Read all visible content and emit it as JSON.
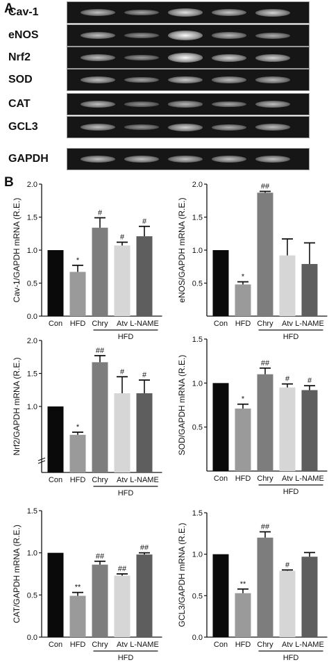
{
  "panels": {
    "a": "A",
    "b": "B"
  },
  "gel": {
    "rows": [
      {
        "label": "Cav-1",
        "intensity": [
          1.0,
          0.7,
          1.35,
          1.05,
          1.2
        ]
      },
      {
        "label": "eNOS",
        "intensity": [
          1.0,
          0.55,
          1.85,
          0.9,
          0.8
        ]
      },
      {
        "label": "Nrf2",
        "intensity": [
          1.0,
          0.6,
          1.65,
          1.2,
          1.2
        ]
      },
      {
        "label": "SOD",
        "intensity": [
          1.0,
          0.72,
          1.1,
          0.95,
          0.92
        ]
      },
      {
        "label": "CAT",
        "intensity": [
          1.0,
          0.5,
          0.87,
          0.74,
          0.98
        ]
      },
      {
        "label": "GCL3",
        "intensity": [
          1.0,
          0.55,
          1.2,
          0.8,
          0.97
        ]
      },
      {
        "label": "GAPDH",
        "intensity": [
          1.0,
          1.0,
          1.0,
          1.0,
          1.0
        ]
      }
    ]
  },
  "chart_data": [
    {
      "type": "bar",
      "ylabel": "Cav-1/GAPDH mRNA (R.E.)",
      "categories": [
        "Con",
        "HFD",
        "Chry",
        "Atv",
        "L-NAME"
      ],
      "group_label": "HFD",
      "values": [
        1.0,
        0.67,
        1.34,
        1.07,
        1.21
      ],
      "errors": [
        0,
        0.1,
        0.15,
        0.05,
        0.15
      ],
      "annotations": [
        "",
        "*",
        "#",
        "#",
        "#"
      ],
      "ylim": [
        0,
        2.0
      ],
      "yticks": [
        "0.0",
        "0.5",
        "1.0",
        "1.5",
        "2.0"
      ],
      "colors": [
        "#0a0a0a",
        "#9a9a9a",
        "#7d7d7d",
        "#d6d6d6",
        "#5e5e5e"
      ]
    },
    {
      "type": "bar",
      "ylabel": "eNOS/GAPDH mRNA (R.E.)",
      "categories": [
        "Con",
        "HFD",
        "Chry",
        "Atv",
        "L-NAME"
      ],
      "group_label": "HFD",
      "values": [
        1.0,
        0.48,
        1.87,
        0.92,
        0.79
      ],
      "errors": [
        0,
        0.04,
        0.02,
        0.25,
        0.32
      ],
      "annotations": [
        "",
        "*",
        "##",
        "",
        ""
      ],
      "ylim": [
        0,
        2.0
      ],
      "yticks": [
        "0.5",
        "1.0",
        "1.5",
        "2.0"
      ],
      "colors": [
        "#0a0a0a",
        "#9a9a9a",
        "#7d7d7d",
        "#d6d6d6",
        "#5e5e5e"
      ]
    },
    {
      "type": "bar",
      "ylabel": "Nrf2/GAPDH mRNA (R.E.)",
      "categories": [
        "Con",
        "HFD",
        "Chry",
        "Atv",
        "L-NAME"
      ],
      "group_label": "HFD",
      "values": [
        1.0,
        0.57,
        1.67,
        1.2,
        1.2
      ],
      "errors": [
        0,
        0.04,
        0.1,
        0.25,
        0.2
      ],
      "annotations": [
        "",
        "*",
        "##",
        "#",
        "#"
      ],
      "ylim": [
        0,
        2.0
      ],
      "yticks": [
        "1.0",
        "1.5",
        "2.0"
      ],
      "ybreak": true,
      "colors": [
        "#0a0a0a",
        "#9a9a9a",
        "#7d7d7d",
        "#d6d6d6",
        "#5e5e5e"
      ]
    },
    {
      "type": "bar",
      "ylabel": "SOD/GAPDH mRNA (R.E.)",
      "categories": [
        "Con",
        "HFD",
        "Chry",
        "Atv",
        "L-NAME"
      ],
      "group_label": "HFD",
      "values": [
        1.0,
        0.71,
        1.1,
        0.95,
        0.92
      ],
      "errors": [
        0,
        0.05,
        0.07,
        0.04,
        0.05
      ],
      "annotations": [
        "",
        "*",
        "##",
        "#",
        "#"
      ],
      "ylim": [
        0,
        1.5
      ],
      "yticks": [
        "0.5",
        "1.0",
        "1.5"
      ],
      "colors": [
        "#0a0a0a",
        "#9a9a9a",
        "#7d7d7d",
        "#d6d6d6",
        "#5e5e5e"
      ]
    },
    {
      "type": "bar",
      "ylabel": "CAT/GAPDH mRNA (R.E.)",
      "categories": [
        "Con",
        "HFD",
        "Chry",
        "Atv",
        "L-NAME"
      ],
      "group_label": "HFD",
      "values": [
        1.0,
        0.49,
        0.86,
        0.73,
        0.98
      ],
      "errors": [
        0,
        0.04,
        0.04,
        0.02,
        0.02
      ],
      "annotations": [
        "",
        "**",
        "##",
        "##",
        "##"
      ],
      "ylim": [
        0,
        1.5
      ],
      "yticks": [
        "0.0",
        "0.5",
        "1.0",
        "1.5"
      ],
      "colors": [
        "#0a0a0a",
        "#9a9a9a",
        "#7d7d7d",
        "#d6d6d6",
        "#5e5e5e"
      ]
    },
    {
      "type": "bar",
      "ylabel": "GCL3/GAPDH mRNA (R.E.)",
      "categories": [
        "Con",
        "HFD",
        "Chry",
        "Atv",
        "L-NAME"
      ],
      "group_label": "HFD",
      "values": [
        1.0,
        0.53,
        1.2,
        0.8,
        0.97
      ],
      "errors": [
        0,
        0.05,
        0.07,
        0.01,
        0.05
      ],
      "annotations": [
        "",
        "**",
        "##",
        "#",
        ""
      ],
      "ylim": [
        0,
        1.5
      ],
      "yticks": [
        "0.0",
        "0.5",
        "1.0",
        "1.5"
      ],
      "colors": [
        "#0a0a0a",
        "#9a9a9a",
        "#7d7d7d",
        "#d6d6d6",
        "#5e5e5e"
      ]
    }
  ]
}
